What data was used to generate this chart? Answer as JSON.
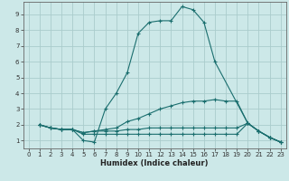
{
  "xlabel": "Humidex (Indice chaleur)",
  "background_color": "#cce8e8",
  "grid_color": "#aacccc",
  "line_color": "#1a6e6e",
  "xlim": [
    -0.5,
    23.5
  ],
  "ylim": [
    0.5,
    9.8
  ],
  "xticks": [
    0,
    1,
    2,
    3,
    4,
    5,
    6,
    7,
    8,
    9,
    10,
    11,
    12,
    13,
    14,
    15,
    16,
    17,
    18,
    19,
    20,
    21,
    22,
    23
  ],
  "yticks": [
    1,
    2,
    3,
    4,
    5,
    6,
    7,
    8,
    9
  ],
  "lines": [
    {
      "x": [
        1,
        2,
        3,
        4,
        5,
        6,
        7,
        8,
        9,
        10,
        11,
        12,
        13,
        14,
        15,
        16,
        17,
        20,
        21,
        22,
        23
      ],
      "y": [
        2,
        1.8,
        1.7,
        1.7,
        1.0,
        0.9,
        3.0,
        4.0,
        5.3,
        7.8,
        8.5,
        8.6,
        8.6,
        9.5,
        9.3,
        8.5,
        6.0,
        2.1,
        1.6,
        1.2,
        0.9
      ]
    },
    {
      "x": [
        1,
        2,
        3,
        4,
        5,
        6,
        7,
        8,
        9,
        10,
        11,
        12,
        13,
        14,
        15,
        16,
        17,
        18,
        19,
        20,
        21,
        22,
        23
      ],
      "y": [
        2,
        1.8,
        1.7,
        1.7,
        1.5,
        1.6,
        1.7,
        1.8,
        2.2,
        2.4,
        2.7,
        3.0,
        3.2,
        3.4,
        3.5,
        3.5,
        3.6,
        3.5,
        3.5,
        2.1,
        1.6,
        1.2,
        0.9
      ]
    },
    {
      "x": [
        1,
        2,
        3,
        4,
        5,
        6,
        7,
        8,
        9,
        10,
        11,
        12,
        13,
        14,
        15,
        16,
        17,
        18,
        19,
        20,
        21,
        22,
        23
      ],
      "y": [
        2,
        1.8,
        1.7,
        1.7,
        1.5,
        1.6,
        1.6,
        1.6,
        1.7,
        1.7,
        1.8,
        1.8,
        1.8,
        1.8,
        1.8,
        1.8,
        1.8,
        1.8,
        1.8,
        2.1,
        1.6,
        1.2,
        0.9
      ]
    },
    {
      "x": [
        1,
        2,
        3,
        4,
        5,
        6,
        7,
        8,
        9,
        10,
        11,
        12,
        13,
        14,
        15,
        16,
        17,
        18,
        19,
        20,
        21,
        22,
        23
      ],
      "y": [
        2,
        1.8,
        1.7,
        1.7,
        1.4,
        1.4,
        1.4,
        1.4,
        1.4,
        1.4,
        1.4,
        1.4,
        1.4,
        1.4,
        1.4,
        1.4,
        1.4,
        1.4,
        1.4,
        2.1,
        1.6,
        1.2,
        0.9
      ]
    }
  ]
}
